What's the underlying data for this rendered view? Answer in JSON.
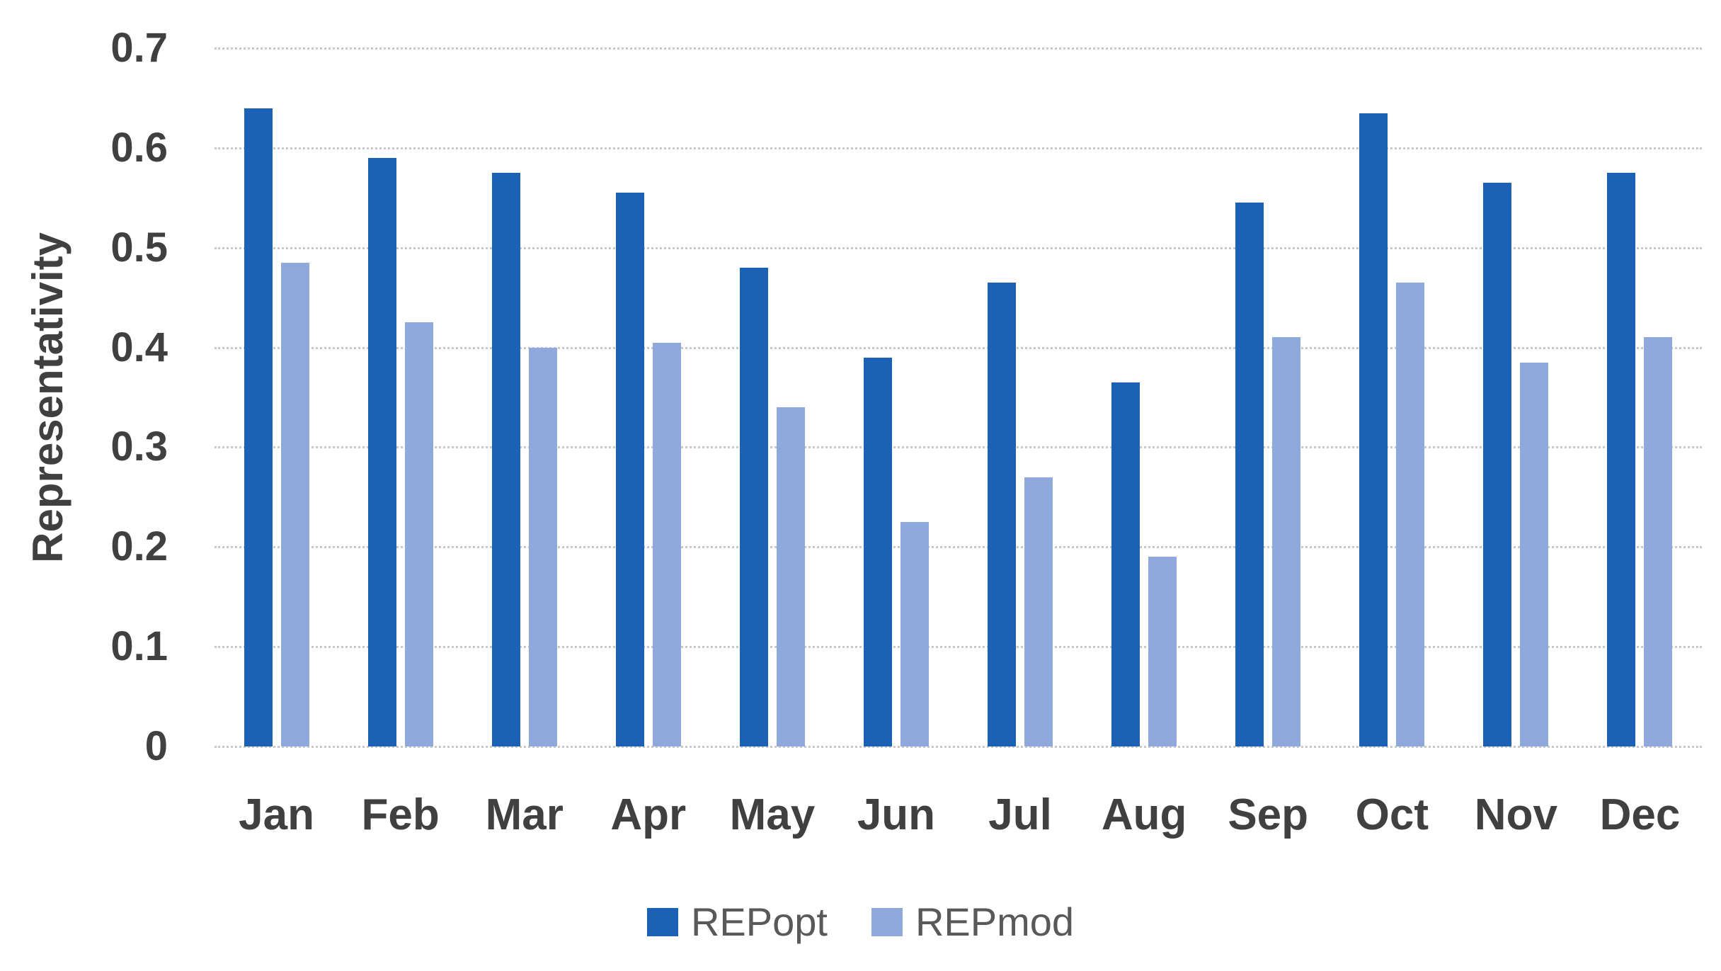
{
  "chart_data": {
    "type": "bar",
    "title": "",
    "xlabel": "",
    "ylabel": "Representativity",
    "categories": [
      "Jan",
      "Feb",
      "Mar",
      "Apr",
      "May",
      "Jun",
      "Jul",
      "Aug",
      "Sep",
      "Oct",
      "Nov",
      "Dec"
    ],
    "series": [
      {
        "name": "REPopt",
        "color": "#1B62B4",
        "values": [
          0.64,
          0.59,
          0.575,
          0.555,
          0.48,
          0.39,
          0.465,
          0.365,
          0.545,
          0.635,
          0.565,
          0.575
        ]
      },
      {
        "name": "REPmod",
        "color": "#8FA9DC",
        "values": [
          0.485,
          0.425,
          0.4,
          0.405,
          0.34,
          0.225,
          0.27,
          0.19,
          0.41,
          0.465,
          0.385,
          0.41
        ]
      }
    ],
    "ylim": [
      0,
      0.7
    ],
    "ytick_step": 0.1,
    "ytick_labels": [
      "0",
      "0.1",
      "0.2",
      "0.3",
      "0.4",
      "0.5",
      "0.6",
      "0.7"
    ],
    "grid": "horizontal dotted",
    "legend_position": "bottom-center"
  },
  "colors": {
    "repopt_bar": "#1B62B4",
    "repmod_bar": "#8FA9DC",
    "gridline": "#C9C9C9",
    "axis_text": "#404040",
    "legend_text": "#595959",
    "background": "#FFFFFF"
  }
}
